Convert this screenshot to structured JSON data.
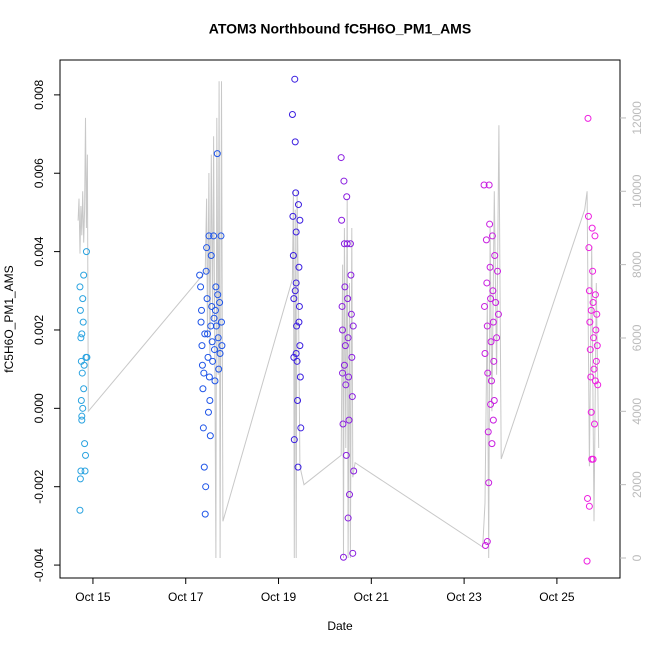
{
  "chart_data": {
    "type": "scatter",
    "title": "ATOM3 Northbound fC5H6O_PM1_AMS",
    "x_label": "Date",
    "y_label": "fC5H6O_PM1_AMS",
    "xlim": [
      14.29,
      26.36
    ],
    "xticks": [
      {
        "value": 15,
        "label": "Oct 15"
      },
      {
        "value": 17,
        "label": "Oct 17"
      },
      {
        "value": 19,
        "label": "Oct 19"
      },
      {
        "value": 21,
        "label": "Oct 21"
      },
      {
        "value": 23,
        "label": "Oct 23"
      },
      {
        "value": 25,
        "label": "Oct 25"
      }
    ],
    "ylim": [
      -0.00433,
      0.00889
    ],
    "yticks": [
      -0.004,
      -0.002,
      {
        "value": 0,
        "label": "0.000"
      },
      0.002,
      0.004,
      0.006,
      0.008
    ],
    "y2lim": [
      -545,
      13580
    ],
    "y2ticks": [
      0,
      2000,
      4000,
      6000,
      8000,
      10000,
      12000
    ],
    "series": [
      {
        "color": "#2aa3e0",
        "x": [
          14.72,
          14.73,
          14.74,
          14.75,
          14.72,
          14.74,
          14.76,
          14.77,
          14.78,
          14.79,
          14.8,
          14.8,
          14.82,
          14.83,
          14.84,
          14.85,
          14.86,
          14.87,
          14.75,
          14.78,
          14.73,
          14.76,
          14.81,
          14.76
        ],
        "values": [
          0.0031,
          0.0025,
          0.0018,
          0.0012,
          -0.0026,
          -0.0016,
          -0.0003,
          0.0009,
          0.0028,
          0.0022,
          0.0034,
          0.0005,
          -0.0009,
          -0.0016,
          -0.0012,
          0.0013,
          0.004,
          0.0013,
          0.0002,
          0.0,
          -0.0018,
          0.0019,
          0.0011,
          -0.0002
        ]
      },
      {
        "color": "#1f55e8",
        "x": [
          17.3,
          17.32,
          17.33,
          17.35,
          17.36,
          17.37,
          17.38,
          17.4,
          17.42,
          17.43,
          17.44,
          17.45,
          17.46,
          17.47,
          17.48,
          17.5,
          17.51,
          17.52,
          17.53,
          17.55,
          17.56,
          17.57,
          17.58,
          17.6,
          17.61,
          17.62,
          17.63,
          17.65,
          17.66,
          17.68,
          17.69,
          17.7,
          17.71,
          17.73,
          17.74,
          17.76,
          17.77,
          17.78,
          17.34,
          17.41,
          17.54,
          17.64,
          17.39,
          17.49
        ],
        "values": [
          0.0034,
          0.0031,
          0.0022,
          0.0016,
          0.0011,
          0.0005,
          -0.0005,
          -0.0015,
          -0.0027,
          -0.002,
          0.0035,
          0.0041,
          0.0028,
          0.0019,
          0.0013,
          0.0044,
          0.0008,
          0.0002,
          -0.0007,
          0.0039,
          0.0026,
          0.0017,
          0.0012,
          0.0044,
          0.0023,
          0.0015,
          0.0007,
          0.0031,
          0.0021,
          0.0065,
          0.0029,
          0.0018,
          0.001,
          0.0027,
          0.0014,
          0.0044,
          0.0022,
          0.0016,
          0.0025,
          0.0019,
          0.0021,
          0.0025,
          0.0009,
          -0.0001
        ]
      },
      {
        "color": "#3a1de0",
        "x": [
          19.3,
          19.31,
          19.32,
          19.33,
          19.33,
          19.34,
          19.35,
          19.36,
          19.37,
          19.38,
          19.38,
          19.39,
          19.4,
          19.41,
          19.42,
          19.43,
          19.44,
          19.45,
          19.46,
          19.47,
          19.48,
          19.38,
          19.44,
          19.46,
          19.36
        ],
        "values": [
          0.0075,
          0.0049,
          0.0039,
          0.0028,
          0.0013,
          -0.0008,
          0.0084,
          0.0068,
          0.0055,
          0.0045,
          0.0032,
          0.0021,
          0.0012,
          0.0002,
          -0.0015,
          0.0052,
          0.0036,
          0.0026,
          0.0016,
          0.0008,
          -0.0005,
          0.0014,
          0.0022,
          0.0048,
          0.003
        ]
      },
      {
        "color": "#8a1ee0",
        "x": [
          20.35,
          20.36,
          20.37,
          20.38,
          20.38,
          20.39,
          20.4,
          20.41,
          20.42,
          20.43,
          20.44,
          20.45,
          20.46,
          20.47,
          20.48,
          20.49,
          20.5,
          20.51,
          20.52,
          20.53,
          20.55,
          20.56,
          20.57,
          20.58,
          20.59,
          20.6,
          20.61,
          20.62,
          20.42,
          20.5
        ],
        "values": [
          0.0064,
          0.0048,
          0.0026,
          0.002,
          0.0009,
          -0.0004,
          -0.0038,
          0.0058,
          0.0042,
          0.0031,
          0.0016,
          0.0006,
          -0.0012,
          0.0054,
          0.0042,
          0.0028,
          0.0018,
          0.0008,
          -0.0003,
          -0.0022,
          0.0042,
          0.0034,
          0.0024,
          0.0013,
          0.0003,
          -0.0037,
          0.0021,
          -0.0016,
          0.0011,
          -0.0028
        ]
      },
      {
        "color": "#c81ee0",
        "x": [
          23.43,
          23.44,
          23.45,
          23.46,
          23.48,
          23.49,
          23.5,
          23.51,
          23.52,
          23.53,
          23.54,
          23.55,
          23.56,
          23.57,
          23.58,
          23.59,
          23.6,
          23.61,
          23.62,
          23.63,
          23.64,
          23.65,
          23.66,
          23.68,
          23.7,
          23.72,
          23.5,
          23.57,
          23.63,
          23.74
        ],
        "values": [
          0.0057,
          0.0026,
          0.0014,
          -0.0035,
          0.0043,
          0.0032,
          0.0021,
          0.0009,
          -0.0006,
          -0.0019,
          0.0057,
          0.0047,
          0.0036,
          0.0028,
          0.0017,
          0.0007,
          -0.0009,
          0.0044,
          0.003,
          0.0022,
          0.0012,
          0.0002,
          0.0039,
          0.0027,
          0.0018,
          0.0035,
          -0.0034,
          0.0001,
          -0.0003,
          0.0024
        ]
      },
      {
        "color": "#ee1ee0",
        "x": [
          25.65,
          25.66,
          25.67,
          25.68,
          25.69,
          25.7,
          25.71,
          25.72,
          25.73,
          25.74,
          25.75,
          25.76,
          25.77,
          25.78,
          25.79,
          25.8,
          25.81,
          25.82,
          25.83,
          25.84,
          25.85,
          25.86,
          25.87,
          25.7,
          25.74,
          25.78,
          25.83,
          25.88
        ],
        "values": [
          -0.0039,
          -0.0023,
          0.0074,
          0.0049,
          0.0041,
          0.003,
          0.0022,
          0.0015,
          0.0008,
          -0.0001,
          -0.0013,
          0.0046,
          0.0035,
          0.0027,
          0.0018,
          0.001,
          -0.0004,
          0.0044,
          0.0029,
          0.002,
          0.0012,
          0.0024,
          0.0016,
          -0.0025,
          0.0025,
          -0.0013,
          0.0007,
          0.0006
        ]
      },
      {
        "color": "#c8c8c8",
        "axis": "y2",
        "style": "line",
        "x": [
          14.68,
          14.7,
          14.72,
          14.74,
          14.76,
          14.78,
          14.8,
          14.82,
          14.84,
          14.86,
          14.88,
          14.9,
          17.42,
          17.45,
          17.47,
          17.5,
          17.52,
          17.55,
          17.58,
          17.6,
          17.62,
          17.65,
          17.67,
          17.7,
          17.72,
          17.74,
          17.77,
          17.8,
          19.3,
          19.32,
          19.34,
          19.36,
          19.38,
          19.4,
          19.43,
          19.46,
          19.55,
          20.35,
          20.38,
          20.4,
          20.42,
          20.45,
          20.48,
          20.5,
          20.53,
          20.55,
          20.58,
          20.6,
          20.65,
          23.4,
          23.45,
          23.5,
          23.53,
          23.56,
          23.6,
          23.65,
          23.7,
          23.75,
          23.8,
          25.6,
          25.65,
          25.7,
          25.75,
          25.8,
          25.85,
          25.9
        ],
        "values": [
          9200,
          9800,
          8300,
          9600,
          8800,
          10000,
          8600,
          9500,
          12000,
          9000,
          11000,
          4000,
          7800,
          9800,
          6000,
          10500,
          5500,
          11000,
          6500,
          11500,
          7000,
          0,
          12000,
          5000,
          13000,
          0,
          13000,
          1000,
          7600,
          10000,
          0,
          9500,
          0,
          10000,
          7000,
          2500,
          2000,
          2800,
          8000,
          0,
          9000,
          3000,
          9800,
          0,
          7500,
          0,
          9000,
          2200,
          2600,
          300,
          1500,
          7000,
          0,
          9000,
          4000,
          10000,
          5000,
          11800,
          2700,
          9500,
          10000,
          2500,
          8500,
          1000,
          7500,
          3000
        ]
      }
    ]
  }
}
